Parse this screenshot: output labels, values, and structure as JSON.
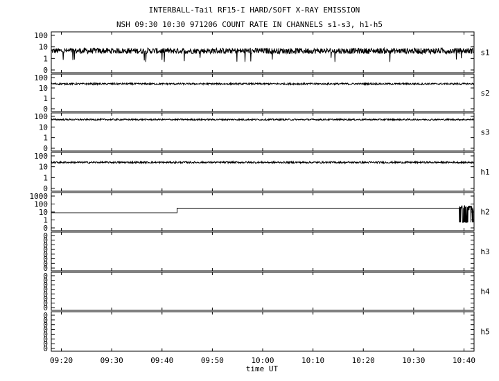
{
  "chart_data": {
    "type": "line",
    "title_line1": "INTERBALL-Tail RF15-I HARD/SOFT X-RAY EMISSION",
    "title_line2": "NSH 09:30 10:30 971206  COUNT RATE IN CHANNELS s1-s3, h1-h5",
    "xlabel": "time UT",
    "x_range": [
      "09:18",
      "10:42"
    ],
    "x_ticks": [
      "09:20",
      "09:30",
      "09:40",
      "09:50",
      "10:00",
      "10:10",
      "10:20",
      "10:30",
      "10:40"
    ],
    "y_scale": "log",
    "panels": [
      {
        "name": "s1",
        "y_ticks": [
          "100",
          "10",
          "1",
          "0"
        ],
        "level": 4.5,
        "noise": 0.25
      },
      {
        "name": "s2",
        "y_ticks": [
          "100",
          "10",
          "1",
          "0"
        ],
        "level": 25,
        "noise": 0.08
      },
      {
        "name": "s3",
        "y_ticks": [
          "100",
          "10",
          "1",
          "0"
        ],
        "level": 50,
        "noise": 0.07
      },
      {
        "name": "h1",
        "y_ticks": [
          "100",
          "10",
          "1",
          "0"
        ],
        "level": 25,
        "noise": 0.08
      },
      {
        "name": "h2",
        "y_ticks": [
          "1000",
          "100",
          "10",
          "1",
          "0"
        ],
        "step_series": {
          "x": [
            "09:18",
            "09:43",
            "09:43",
            "10:39"
          ],
          "y": [
            8,
            8,
            30,
            30
          ]
        },
        "burst": {
          "x_start": "10:39",
          "x_end": "10:42",
          "y_low": 0.1,
          "y_high": 60
        }
      },
      {
        "name": "h3",
        "y_ticks": [
          "0",
          "0",
          "0",
          "0",
          "0",
          "0",
          "0",
          "0"
        ]
      },
      {
        "name": "h4",
        "y_ticks": [
          "0",
          "0",
          "0",
          "0",
          "0",
          "0",
          "0",
          "0"
        ]
      },
      {
        "name": "h5",
        "y_ticks": [
          "0",
          "0",
          "0",
          "0",
          "0",
          "0",
          "0",
          "0"
        ]
      }
    ],
    "grid": false,
    "line_color": "#000000"
  }
}
